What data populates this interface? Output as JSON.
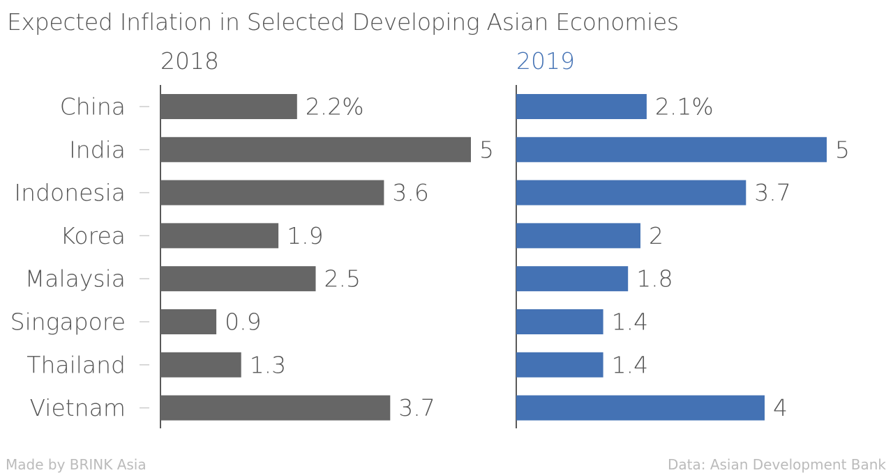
{
  "chart_data": {
    "type": "bar",
    "orientation": "horizontal",
    "title": "Expected Inflation in Selected Developing Asian Economies",
    "categories": [
      "China",
      "India",
      "Indonesia",
      "Korea",
      "Malaysia",
      "Singapore",
      "Thailand",
      "Vietnam"
    ],
    "series": [
      {
        "name": "2018",
        "color": "#666666",
        "values": [
          2.2,
          5,
          3.6,
          1.9,
          2.5,
          0.9,
          1.3,
          3.7
        ],
        "value_labels": [
          "2.2%",
          "5",
          "3.6",
          "1.9",
          "2.5",
          "0.9",
          "1.3",
          "3.7"
        ]
      },
      {
        "name": "2019",
        "color": "#4472b4",
        "values": [
          2.1,
          5,
          3.7,
          2,
          1.8,
          1.4,
          1.4,
          4
        ],
        "value_labels": [
          "2.1%",
          "5",
          "3.7",
          "2",
          "1.8",
          "1.4",
          "1.4",
          "4"
        ]
      }
    ],
    "xlim": [
      0,
      5
    ],
    "grid": false,
    "legend": "none"
  },
  "footer": {
    "left": "Made by BRINK Asia",
    "right": "Data: Asian Development Bank"
  }
}
